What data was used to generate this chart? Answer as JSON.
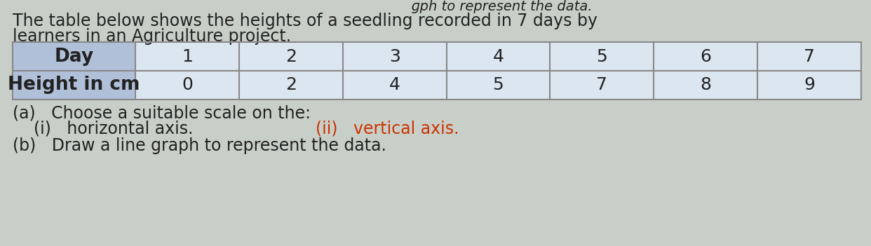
{
  "title_line1": "The table below shows the heights of a seedling recorded in 7 days by",
  "title_line2": "learners in an Agriculture project.",
  "partial_title": "     ɡph to represent the data.",
  "col_header1": "Day",
  "col_header2": "Height in cm",
  "days": [
    "1",
    "2",
    "3",
    "4",
    "5",
    "6",
    "7"
  ],
  "heights": [
    "0",
    "2",
    "4",
    "5",
    "7",
    "8",
    "9"
  ],
  "question_a": "(a)   Choose a suitable scale on the:",
  "question_a_i": "(i)   horizontal axis.",
  "question_a_ii": "(ii)   vertical axis.",
  "question_b": "(b)   Draw a line graph to represent the data.",
  "header_bg_color": "#b0c0d8",
  "data_row_bg": "#dce6f0",
  "table_border_color": "#888888",
  "text_color_black": "#222222",
  "text_color_red": "#cc3300",
  "bg_color": "#c8cfc8",
  "font_size_body": 17,
  "font_size_table_header": 19,
  "font_size_table_data": 18,
  "font_size_partial": 14
}
